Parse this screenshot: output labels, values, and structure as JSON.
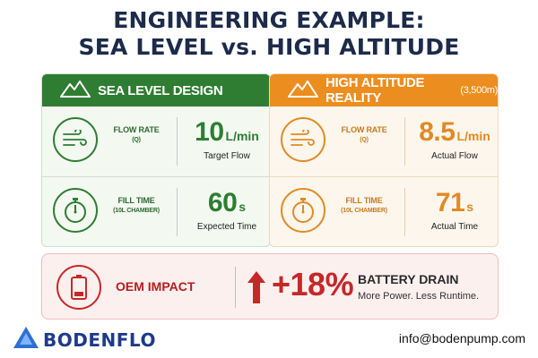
{
  "title_line1": "ENGINEERING EXAMPLE:",
  "title_line2": "SEA LEVEL vs. HIGH ALTITUDE",
  "sea_level": {
    "header": "SEA LEVEL DESIGN",
    "flow": {
      "label": "FLOW RATE",
      "sub": "(Q)",
      "value": "10",
      "unit": "L/min",
      "caption": "Target Flow"
    },
    "fill": {
      "label": "FILL TIME",
      "sub": "(10L CHAMBER)",
      "value": "60",
      "unit": "s",
      "caption": "Expected Time"
    }
  },
  "high_altitude": {
    "header": "HIGH ALTITUDE REALITY",
    "header_sub": "(3,500m)",
    "flow": {
      "label": "FLOW RATE",
      "sub": "(Q)",
      "value": "8.5",
      "unit": "L/min",
      "caption": "Actual Flow"
    },
    "fill": {
      "label": "FILL TIME",
      "sub": "(10L CHAMBER)",
      "value": "71",
      "unit": "s",
      "caption": "Actual Time"
    }
  },
  "impact": {
    "label": "OEM IMPACT",
    "percent": "+18%",
    "title": "BATTERY DRAIN",
    "subtitle": "More Power. Less Runtime."
  },
  "footer": {
    "logo": "BODENFLO",
    "email": "info@bodenpump.com"
  },
  "colors": {
    "green": "#2e7d32",
    "orange": "#ec8d1f",
    "red": "#c62828",
    "navy": "#1c2b4a"
  },
  "icons": [
    "mountain-icon",
    "wind-flow-icon",
    "stopwatch-icon",
    "battery-low-icon",
    "up-arrow-icon",
    "bodenflo-logo-icon"
  ]
}
